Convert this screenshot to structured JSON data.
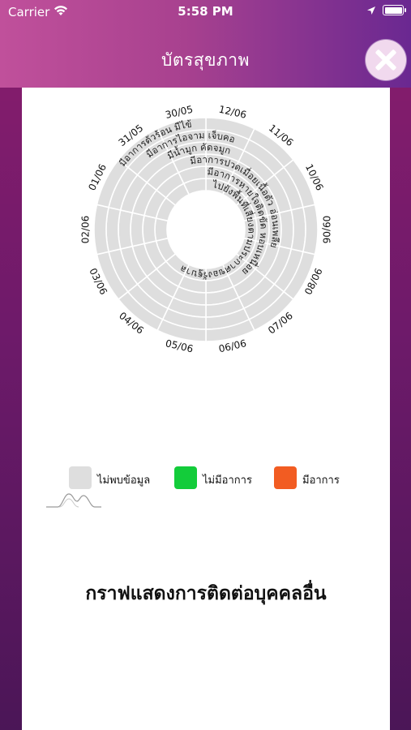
{
  "status": {
    "carrier": "Carrier",
    "time": "5:58 PM"
  },
  "header": {
    "title": "บัตรสุขภาพ"
  },
  "wheel": {
    "dates": [
      "12/06",
      "11/06",
      "10/06",
      "09/06",
      "08/06",
      "07/06",
      "06/06",
      "05/06",
      "04/06",
      "03/06",
      "02/06",
      "01/06",
      "31/05",
      "30/05"
    ],
    "symptoms": [
      "มีอาการตัวร้อน มีไข้",
      "มีอาการไอจาม เจ็บคอ",
      "มีน้ำมูก คัดจมูก",
      "มีอาการปวดเมื่อยเนื้อตัว อ่อนเพลีย",
      "มีอาการหายใจติดขัด หอบเหนื่อย",
      "ไปยังพื้นที่เสี่ยงตามประกาศของรัฐบาล"
    ],
    "colors": {
      "no_data": "#dedede"
    }
  },
  "legend": [
    {
      "label": "ไม่พบข้อมูล",
      "color": "#dedede"
    },
    {
      "label": "ไม่มีอาการ",
      "color": "#13cc3a"
    },
    {
      "label": "มีอาการ",
      "color": "#f25c22"
    }
  ],
  "section": {
    "title": "กราฟแสดงการติดต่อบุคคลอื่น"
  }
}
